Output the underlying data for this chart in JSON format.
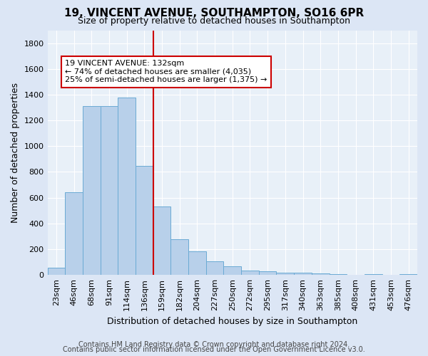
{
  "title1": "19, VINCENT AVENUE, SOUTHAMPTON, SO16 6PR",
  "title2": "Size of property relative to detached houses in Southampton",
  "xlabel": "Distribution of detached houses by size in Southampton",
  "ylabel": "Number of detached properties",
  "footer1": "Contains HM Land Registry data © Crown copyright and database right 2024.",
  "footer2": "Contains public sector information licensed under the Open Government Licence v3.0.",
  "annotation_line1": "19 VINCENT AVENUE: 132sqm",
  "annotation_line2": "← 74% of detached houses are smaller (4,035)",
  "annotation_line3": "25% of semi-detached houses are larger (1,375) →",
  "bar_categories": [
    "23sqm",
    "46sqm",
    "68sqm",
    "91sqm",
    "114sqm",
    "136sqm",
    "159sqm",
    "182sqm",
    "204sqm",
    "227sqm",
    "250sqm",
    "272sqm",
    "295sqm",
    "317sqm",
    "340sqm",
    "363sqm",
    "385sqm",
    "408sqm",
    "431sqm",
    "453sqm",
    "476sqm"
  ],
  "bar_values": [
    55,
    645,
    1310,
    1310,
    1380,
    845,
    530,
    275,
    185,
    105,
    65,
    35,
    30,
    20,
    15,
    10,
    5,
    0,
    5,
    0,
    5
  ],
  "bar_color": "#b8d0ea",
  "bar_edge_color": "#6aaad4",
  "vline_color": "#cc0000",
  "annotation_box_facecolor": "#ffffff",
  "annotation_box_edgecolor": "#cc0000",
  "ylim": [
    0,
    1900
  ],
  "yticks": [
    0,
    200,
    400,
    600,
    800,
    1000,
    1200,
    1400,
    1600,
    1800
  ],
  "bg_color": "#dce6f5",
  "plot_bg_color": "#e8f0f8",
  "grid_color": "#ffffff",
  "title1_fontsize": 11,
  "title2_fontsize": 9,
  "ylabel_fontsize": 9,
  "xlabel_fontsize": 9,
  "tick_fontsize": 8,
  "annotation_fontsize": 8,
  "footer_fontsize": 7
}
